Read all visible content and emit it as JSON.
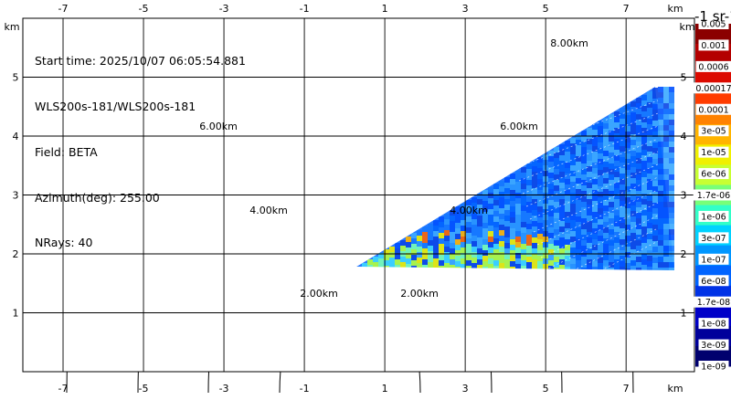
{
  "info": {
    "start_time": "Start time: 2025/10/07 06:05:54.881",
    "instrument": "WLS200s-181/WLS200s-181",
    "field": "Field: BETA",
    "azimuth": "Azimuth(deg): 255.00",
    "nrays": "NRays: 40"
  },
  "axes": {
    "unit": "km",
    "x_ticks": [
      -7,
      -5,
      -3,
      -1,
      1,
      3,
      5,
      7
    ],
    "x_tick_labels": [
      "-7",
      "-5",
      "-3",
      "-1",
      "1",
      "3",
      "5",
      "7"
    ],
    "y_ticks": [
      1,
      2,
      3,
      4,
      5
    ],
    "y_tick_labels": [
      "1",
      "2",
      "3",
      "4",
      "5"
    ],
    "x_range": [
      -8.0,
      8.7
    ],
    "y_range": [
      0.0,
      6.0
    ]
  },
  "range_rings": {
    "labels": [
      "2.00km",
      "4.00km",
      "6.00km",
      "8.00km"
    ]
  },
  "colorbar": {
    "title": "-1 sr-1",
    "labels": [
      "0.005",
      "0.001",
      "0.0006",
      "0.00017",
      "0.0001",
      "3e-05",
      "1e-05",
      "6e-06",
      "1.7e-06",
      "1e-06",
      "3e-07",
      "1e-07",
      "6e-08",
      "1.7e-08",
      "1e-08",
      "3e-09",
      "1e-09"
    ],
    "colors": [
      "#8b0000",
      "#b40000",
      "#dc0a00",
      "#ff3c00",
      "#ff8200",
      "#ffb400",
      "#f0f000",
      "#c8ff32",
      "#78ff78",
      "#32ffc8",
      "#00d2ff",
      "#0096ff",
      "#0064ff",
      "#0032e6",
      "#0000c8",
      "#00009b",
      "#00006e"
    ]
  }
}
